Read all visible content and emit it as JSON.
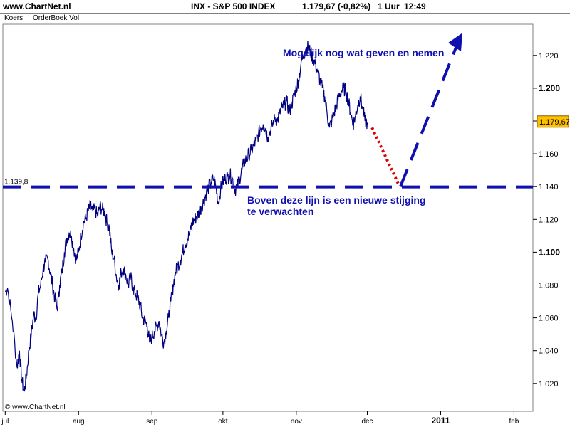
{
  "header": {
    "site": "www.ChartNet.nl",
    "title": "INX - S&P 500 INDEX",
    "price": "1.179,67 (-0,82%)",
    "interval": "1 Uur",
    "time": "12:49"
  },
  "tabs": [
    "Koers",
    "OrderBoek Vol"
  ],
  "copyright": "© www.ChartNet.nl",
  "annotations": {
    "top_note": "Mogelijk nog wat geven en nemen",
    "box_line1": "Boven deze lijn is een nieuwe stijging",
    "box_line2": "te verwachten",
    "level_label": "1.139,8",
    "last_price": "1.179,67"
  },
  "colors": {
    "price": "#000080",
    "annotation": "#1010b0",
    "dotted": "#e00000",
    "last_price_bg": "#ffc000"
  },
  "chart_data": {
    "type": "line",
    "title": "INX - S&P 500 INDEX",
    "interval": "1 Uur",
    "x_ticks": [
      {
        "label": "jul",
        "t": 0
      },
      {
        "label": "aug",
        "t": 31
      },
      {
        "label": "sep",
        "t": 62
      },
      {
        "label": "okt",
        "t": 92
      },
      {
        "label": "nov",
        "t": 123
      },
      {
        "label": "dec",
        "t": 153
      },
      {
        "label": "2011",
        "t": 184,
        "bold": true
      },
      {
        "label": "feb",
        "t": 215
      }
    ],
    "y_ticks": [
      1020,
      1040,
      1060,
      1080,
      1100,
      1120,
      1140,
      1160,
      1180,
      1200,
      1220
    ],
    "y_tick_labels": [
      "1.020",
      "1.040",
      "1.060",
      "1.080",
      "1.100",
      "1.120",
      "1.140",
      "1.160",
      "1.180",
      "1.200",
      "1.220"
    ],
    "bold_y_ticks": [
      1100,
      1200
    ],
    "ylim": [
      1003,
      1239
    ],
    "xlim": [
      -1,
      223
    ],
    "series": [
      {
        "values": [
          [
            0,
            1076
          ],
          [
            1,
            1078
          ],
          [
            3,
            1058
          ],
          [
            5,
            1030
          ],
          [
            6,
            1040
          ],
          [
            7,
            1022
          ],
          [
            8,
            1015
          ],
          [
            9,
            1025
          ],
          [
            10,
            1040
          ],
          [
            11,
            1050
          ],
          [
            12,
            1062
          ],
          [
            13,
            1060
          ],
          [
            14,
            1075
          ],
          [
            15,
            1080
          ],
          [
            16,
            1090
          ],
          [
            17,
            1094
          ],
          [
            18,
            1096
          ],
          [
            19,
            1088
          ],
          [
            20,
            1080
          ],
          [
            21,
            1072
          ],
          [
            22,
            1065
          ],
          [
            23,
            1080
          ],
          [
            24,
            1088
          ],
          [
            25,
            1100
          ],
          [
            26,
            1108
          ],
          [
            27,
            1112
          ],
          [
            28,
            1110
          ],
          [
            29,
            1102
          ],
          [
            30,
            1095
          ],
          [
            31,
            1100
          ],
          [
            32,
            1110
          ],
          [
            33,
            1118
          ],
          [
            34,
            1120
          ],
          [
            35,
            1125
          ],
          [
            36,
            1128
          ],
          [
            37,
            1125
          ],
          [
            38,
            1126
          ],
          [
            39,
            1122
          ],
          [
            40,
            1128
          ],
          [
            41,
            1126
          ],
          [
            42,
            1125
          ],
          [
            43,
            1118
          ],
          [
            44,
            1115
          ],
          [
            45,
            1100
          ],
          [
            46,
            1096
          ],
          [
            47,
            1085
          ],
          [
            48,
            1080
          ],
          [
            49,
            1088
          ],
          [
            50,
            1090
          ],
          [
            51,
            1086
          ],
          [
            52,
            1080
          ],
          [
            53,
            1085
          ],
          [
            54,
            1078
          ],
          [
            55,
            1075
          ],
          [
            56,
            1072
          ],
          [
            57,
            1068
          ],
          [
            58,
            1060
          ],
          [
            59,
            1058
          ],
          [
            60,
            1055
          ],
          [
            61,
            1045
          ],
          [
            62,
            1048
          ],
          [
            63,
            1052
          ],
          [
            64,
            1055
          ],
          [
            65,
            1058
          ],
          [
            66,
            1050
          ],
          [
            67,
            1045
          ],
          [
            68,
            1052
          ],
          [
            69,
            1060
          ],
          [
            70,
            1070
          ],
          [
            71,
            1080
          ],
          [
            72,
            1088
          ],
          [
            73,
            1092
          ],
          [
            74,
            1095
          ],
          [
            75,
            1100
          ],
          [
            76,
            1105
          ],
          [
            77,
            1108
          ],
          [
            78,
            1112
          ],
          [
            79,
            1118
          ],
          [
            80,
            1120
          ],
          [
            81,
            1122
          ],
          [
            82,
            1124
          ],
          [
            83,
            1128
          ],
          [
            84,
            1132
          ],
          [
            85,
            1136
          ],
          [
            86,
            1140
          ],
          [
            87,
            1142
          ],
          [
            88,
            1145
          ],
          [
            89,
            1140
          ],
          [
            90,
            1130
          ],
          [
            91,
            1138
          ],
          [
            92,
            1143
          ],
          [
            93,
            1145
          ],
          [
            94,
            1146
          ],
          [
            95,
            1147
          ],
          [
            96,
            1145
          ],
          [
            97,
            1138
          ],
          [
            98,
            1140
          ],
          [
            99,
            1145
          ],
          [
            100,
            1150
          ],
          [
            101,
            1155
          ],
          [
            102,
            1157
          ],
          [
            103,
            1160
          ],
          [
            104,
            1162
          ],
          [
            105,
            1165
          ],
          [
            106,
            1168
          ],
          [
            107,
            1172
          ],
          [
            108,
            1176
          ],
          [
            109,
            1178
          ],
          [
            110,
            1175
          ],
          [
            111,
            1170
          ],
          [
            112,
            1174
          ],
          [
            113,
            1178
          ],
          [
            114,
            1182
          ],
          [
            115,
            1180
          ],
          [
            116,
            1185
          ],
          [
            117,
            1188
          ],
          [
            118,
            1190
          ],
          [
            119,
            1192
          ],
          [
            120,
            1185
          ],
          [
            121,
            1190
          ],
          [
            122,
            1195
          ],
          [
            123,
            1200
          ],
          [
            124,
            1205
          ],
          [
            125,
            1215
          ],
          [
            126,
            1220
          ],
          [
            127,
            1224
          ],
          [
            128,
            1225
          ],
          [
            129,
            1222
          ],
          [
            130,
            1218
          ],
          [
            131,
            1215
          ],
          [
            132,
            1210
          ],
          [
            133,
            1205
          ],
          [
            134,
            1200
          ],
          [
            135,
            1195
          ],
          [
            136,
            1185
          ],
          [
            137,
            1176
          ],
          [
            138,
            1180
          ],
          [
            139,
            1185
          ],
          [
            140,
            1190
          ],
          [
            141,
            1195
          ],
          [
            142,
            1198
          ],
          [
            143,
            1200
          ],
          [
            144,
            1198
          ],
          [
            145,
            1192
          ],
          [
            146,
            1185
          ],
          [
            147,
            1178
          ],
          [
            148,
            1183
          ],
          [
            149,
            1190
          ],
          [
            150,
            1195
          ],
          [
            151,
            1188
          ],
          [
            152,
            1180
          ],
          [
            153,
            1179
          ]
        ]
      }
    ],
    "horizontal_line": 1139.8
  }
}
